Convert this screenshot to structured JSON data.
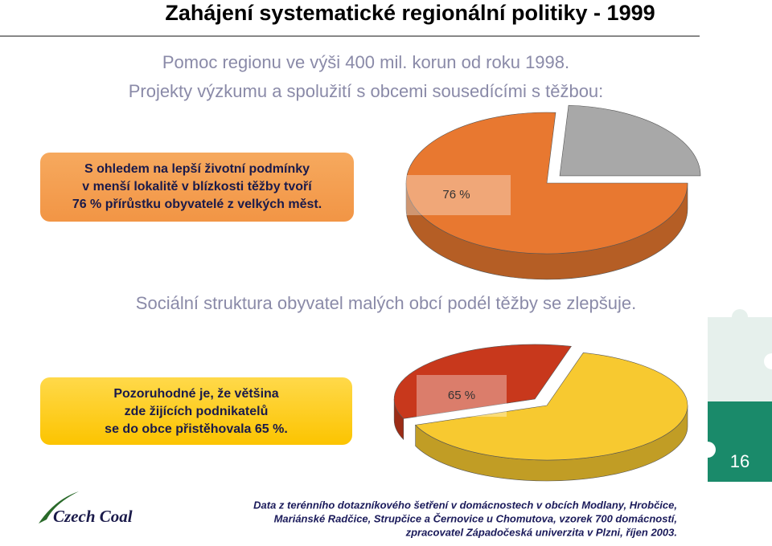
{
  "header": {
    "title": "Zahájení systematické regionální politiky - 1999"
  },
  "intro": {
    "lines": [
      "Pomoc regionu ve výši 400 mil. korun od roku 1998.",
      "Projekty výzkumu a spolužití s obcemi sousedícími s těžbou:"
    ]
  },
  "callout_1": {
    "lines": [
      "S ohledem na lepší životní podmínky",
      "v menší lokalitě v blízkosti těžby tvoří",
      "76 % přírůstku obyvatelé z velkých měst."
    ]
  },
  "heading_2": "Sociální struktura obyvatel malých obcí podél těžby se zlepšuje.",
  "callout_2": {
    "lines": [
      "Pozoruhodné je, že většina",
      "zde žijících podnikatelů",
      "se do obce přistěhovala 65 %."
    ]
  },
  "slide_number": "16",
  "logo": "Czech Coal",
  "footer": {
    "lines": [
      "Data z terénního dotazníkového šetření v domácnostech v obcích Modlany, Hrobčice,",
      "Mariánské Radčice, Strupčice a Černovice u Chomutova, vzorek 700 domácností,",
      "zpracovatel Západočeská univerzita v Plzni, říjen 2003."
    ]
  },
  "chart_data": [
    {
      "type": "pie",
      "values": [
        76,
        24
      ],
      "value_labels": [
        "76 %",
        null
      ],
      "colors": [
        "#e87830",
        "#a8a8a8"
      ]
    },
    {
      "type": "pie",
      "values": [
        65,
        35
      ],
      "value_labels": [
        "65 %",
        null
      ],
      "colors": [
        "#f7c930",
        "#c8381c"
      ]
    }
  ]
}
